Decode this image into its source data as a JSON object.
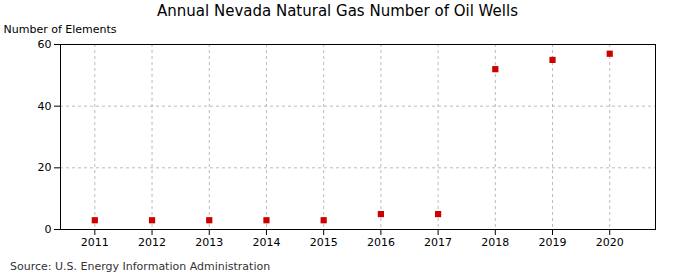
{
  "chart_data": {
    "type": "scatter",
    "title": "Annual Nevada Natural Gas Number of Oil Wells",
    "ylabel": "Number of Elements",
    "annotation": "Source: U.S. Energy Information Administration",
    "x": [
      2011,
      2012,
      2013,
      2014,
      2015,
      2016,
      2017,
      2018,
      2019,
      2020
    ],
    "values": [
      3,
      3,
      3,
      3,
      3,
      5,
      5,
      52,
      55,
      57
    ],
    "color": "#cc0000",
    "marker": "square",
    "xlim": [
      2010.4,
      2020.8
    ],
    "xticks": [
      2011,
      2012,
      2013,
      2014,
      2015,
      2016,
      2017,
      2018,
      2019,
      2020
    ],
    "ylim": [
      0,
      60
    ],
    "yticks": [
      0,
      20,
      40,
      60
    ],
    "grid": true
  }
}
